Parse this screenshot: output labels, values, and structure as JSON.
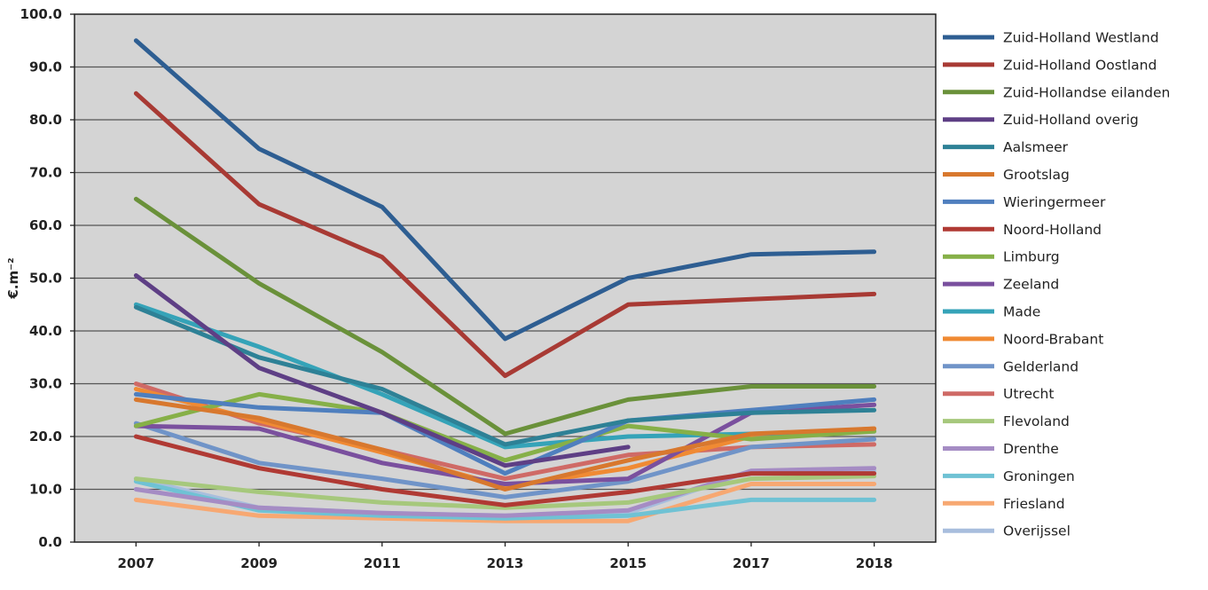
{
  "chart_data": {
    "type": "line",
    "title": "",
    "xlabel": "",
    "ylabel": "€.m⁻²",
    "ylim": [
      0,
      100
    ],
    "ytick_labels": [
      "0.0",
      "10.0",
      "20.0",
      "30.0",
      "40.0",
      "50.0",
      "60.0",
      "70.0",
      "80.0",
      "90.0",
      "100.0"
    ],
    "categories": [
      "2007",
      "2009",
      "2011",
      "2013",
      "2015",
      "2017",
      "2018"
    ],
    "grid": true,
    "legend_position": "right",
    "plot_background": "#d4d4d4",
    "series": [
      {
        "name": "Zuid-Holland Westland",
        "color": "#2e5e92",
        "values": [
          95,
          74.5,
          63.5,
          38.5,
          50,
          54.5,
          55
        ]
      },
      {
        "name": "Zuid-Holland Oostland",
        "color": "#a83a34",
        "values": [
          85,
          64,
          54,
          31.5,
          45,
          46,
          47
        ]
      },
      {
        "name": "Zuid-Hollandse eilanden",
        "color": "#6a913a",
        "values": [
          65,
          49,
          36,
          20.5,
          27,
          29.5,
          29.5
        ]
      },
      {
        "name": "Zuid-Holland overig",
        "color": "#5e3f85",
        "values": [
          50.5,
          33,
          24.5,
          14.5,
          18,
          null,
          null
        ]
      },
      {
        "name": "Aalsmeer",
        "color": "#2e8196",
        "values": [
          44.5,
          35,
          29,
          18.5,
          23,
          24.5,
          25
        ]
      },
      {
        "name": "Grootslag",
        "color": "#d8782e",
        "values": [
          27,
          23.5,
          17.5,
          10,
          15.5,
          20.5,
          21.5
        ]
      },
      {
        "name": "Wieringermeer",
        "color": "#4f7fbe",
        "values": [
          28,
          25.5,
          24.5,
          13,
          23,
          25,
          27
        ]
      },
      {
        "name": "Noord-Holland",
        "color": "#b03a34",
        "values": [
          20,
          14,
          10,
          7,
          9.5,
          13,
          13
        ]
      },
      {
        "name": "Limburg",
        "color": "#86b048",
        "values": [
          22,
          28,
          24.5,
          15.5,
          22,
          19.5,
          21
        ]
      },
      {
        "name": "Zeeland",
        "color": "#7a509e",
        "values": [
          22,
          21.5,
          15,
          11,
          12,
          24.5,
          26
        ]
      },
      {
        "name": "Made",
        "color": "#35a3b8",
        "values": [
          45,
          37,
          28,
          18,
          20,
          20.5,
          21
        ]
      },
      {
        "name": "Noord-Brabant",
        "color": "#f08a33",
        "values": [
          29,
          23,
          17,
          10.5,
          14,
          20,
          21.5
        ]
      },
      {
        "name": "Gelderland",
        "color": "#7094c8",
        "values": [
          22.5,
          15,
          12,
          8.5,
          11.5,
          18,
          19.5
        ]
      },
      {
        "name": "Utrecht",
        "color": "#cf6a66",
        "values": [
          30,
          22.5,
          17.5,
          12,
          16.5,
          18,
          18.5
        ]
      },
      {
        "name": "Flevoland",
        "color": "#a6c87c",
        "values": [
          12,
          9.5,
          7.5,
          6.5,
          7.5,
          12,
          12.5
        ]
      },
      {
        "name": "Drenthe",
        "color": "#a58cc4",
        "values": [
          10,
          6.5,
          5.5,
          5,
          6,
          13.5,
          14
        ]
      },
      {
        "name": "Groningen",
        "color": "#6fc2d4",
        "values": [
          11.5,
          6,
          5,
          4.5,
          5,
          8,
          8
        ]
      },
      {
        "name": "Friesland",
        "color": "#f7a872",
        "values": [
          8,
          5,
          4.5,
          4,
          4,
          11,
          11
        ]
      },
      {
        "name": "Overijssel",
        "color": "#a8bedd",
        "values": [
          12,
          6.5,
          5.5,
          5,
          5.5,
          13.5,
          13.5
        ]
      }
    ]
  }
}
